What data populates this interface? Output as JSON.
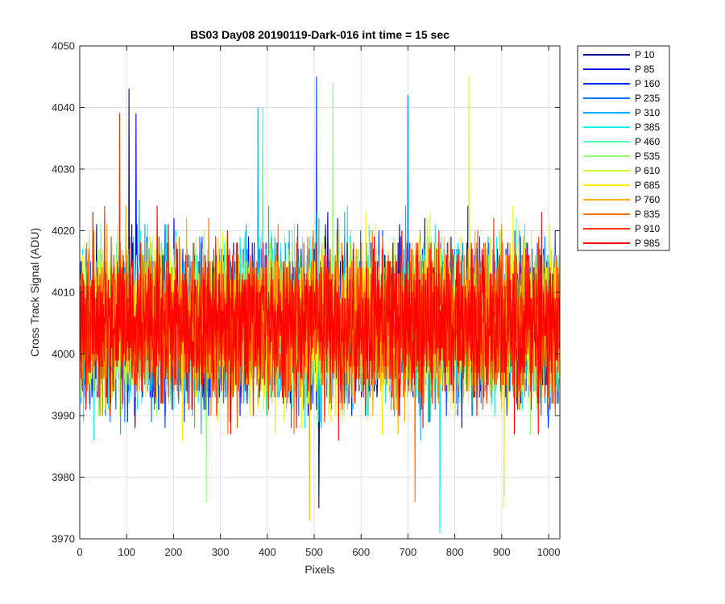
{
  "chart_data": {
    "type": "line",
    "title": "BS03 Day08 20190119-Dark-016 int time = 15 sec",
    "xlabel": "Pixels",
    "ylabel": "Cross Track Signal (ADU)",
    "xlim": [
      0,
      1024
    ],
    "ylim": [
      3970,
      4050
    ],
    "xticks": [
      0,
      100,
      200,
      300,
      400,
      500,
      600,
      700,
      800,
      900,
      1000
    ],
    "yticks": [
      3970,
      3980,
      3990,
      4000,
      4010,
      4020,
      4030,
      4040,
      4050
    ],
    "grid": true,
    "legend_position": "outside-right",
    "noise": {
      "x_start": 1,
      "x_end": 1024,
      "mean": 4005,
      "stdev": 6
    },
    "series": [
      {
        "name": "P 10",
        "color": "#00008f",
        "peaks": [
          {
            "x": 105,
            "y": 4043
          },
          {
            "x": 510,
            "y": 3975
          }
        ]
      },
      {
        "name": "P 85",
        "color": "#0000ff",
        "peaks": [
          {
            "x": 120,
            "y": 4039
          }
        ]
      },
      {
        "name": "P 160",
        "color": "#0030ff",
        "peaks": [
          {
            "x": 505,
            "y": 4045
          }
        ]
      },
      {
        "name": "P 235",
        "color": "#0070ff",
        "peaks": [
          {
            "x": 700,
            "y": 4042
          },
          {
            "x": 905,
            "y": 3977
          }
        ]
      },
      {
        "name": "P 310",
        "color": "#00b0ff",
        "peaks": [
          {
            "x": 380,
            "y": 4040
          }
        ]
      },
      {
        "name": "P 385",
        "color": "#10f0ef",
        "peaks": [
          {
            "x": 768,
            "y": 3971
          }
        ]
      },
      {
        "name": "P 460",
        "color": "#50ffaf",
        "peaks": [
          {
            "x": 390,
            "y": 4040
          }
        ]
      },
      {
        "name": "P 535",
        "color": "#8fff70",
        "peaks": [
          {
            "x": 540,
            "y": 4044
          },
          {
            "x": 270,
            "y": 3976
          }
        ]
      },
      {
        "name": "P 610",
        "color": "#cfff30",
        "peaks": [
          {
            "x": 830,
            "y": 4045
          }
        ]
      },
      {
        "name": "P 685",
        "color": "#ffef00",
        "peaks": [
          {
            "x": 905,
            "y": 3975
          }
        ]
      },
      {
        "name": "P 760",
        "color": "#ffb000",
        "peaks": [
          {
            "x": 490,
            "y": 3973
          }
        ]
      },
      {
        "name": "P 835",
        "color": "#ff7000",
        "peaks": [
          {
            "x": 715,
            "y": 3976
          }
        ]
      },
      {
        "name": "P 910",
        "color": "#ff3000",
        "peaks": [
          {
            "x": 85,
            "y": 4039
          }
        ]
      },
      {
        "name": "P 985",
        "color": "#ff0000",
        "peaks": []
      }
    ]
  }
}
